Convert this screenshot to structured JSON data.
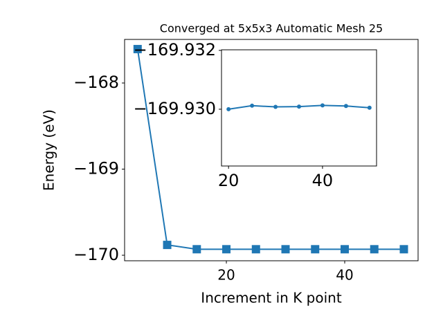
{
  "chart_data": [
    {
      "type": "line",
      "title": "Converged at 5x5x3 Automatic Mesh 25",
      "x_label": "Increment in K point",
      "y_label": "Energy (eV)",
      "x": [
        5,
        10,
        15,
        20,
        25,
        30,
        35,
        40,
        45,
        50
      ],
      "series": [
        {
          "color": "#1f77b4",
          "marker": "square",
          "values": [
            -167.606,
            -169.88,
            -169.93,
            -169.93,
            -169.9301,
            -169.9301,
            -169.9301,
            -169.9301,
            -169.9301,
            -169.9301
          ]
        }
      ],
      "xlim": [
        2.8,
        52.4
      ],
      "xticks": [
        20,
        40
      ],
      "ylim": [
        -170.064,
        -167.494
      ],
      "yticks": [
        {
          "value": -170,
          "label": "−170"
        },
        {
          "value": -169,
          "label": "−169"
        },
        {
          "value": -168,
          "label": "−168"
        }
      ]
    },
    {
      "type": "line",
      "x": [
        20,
        25,
        30,
        35,
        40,
        45,
        50
      ],
      "series": [
        {
          "color": "#1f77b4",
          "marker": "circle",
          "values": [
            -169.93,
            -169.93012,
            -169.93008,
            -169.93009,
            -169.93013,
            -169.93011,
            -169.93005
          ]
        }
      ],
      "xlim": [
        18.5,
        51.5
      ],
      "xticks": [
        20,
        40
      ],
      "ylim": [
        -169.92807,
        -169.93202
      ],
      "yticks": [
        {
          "value": -169.932,
          "label": "−169.932"
        },
        {
          "value": -169.93,
          "label": "−169.930"
        }
      ]
    }
  ]
}
